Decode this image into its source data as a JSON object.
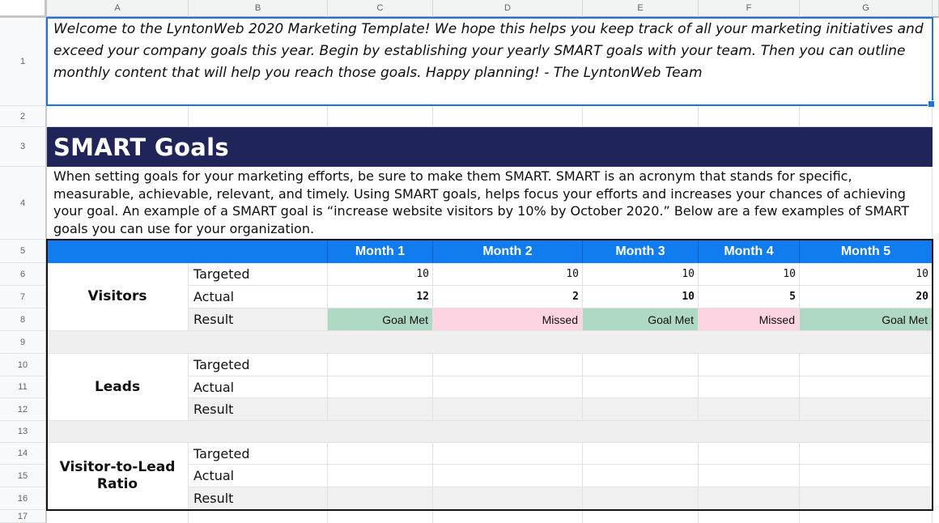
{
  "columns": [
    "A",
    "B",
    "C",
    "D",
    "E",
    "F",
    "G"
  ],
  "rows": [
    "1",
    "2",
    "3",
    "4",
    "5",
    "6",
    "7",
    "8",
    "9",
    "10",
    "11",
    "12",
    "13",
    "14",
    "15",
    "16",
    "17"
  ],
  "intro_cell": {
    "text": "Welcome to the LyntonWeb 2020 Marketing Template! We hope this helps you keep track of all your marketing initiatives and exceed your company goals this year. Begin by establishing your yearly SMART goals with your team. Then you can outline monthly content that will help you reach those goals. Happy planning! - The LyntonWeb Team"
  },
  "section": {
    "title": "SMART Goals",
    "description": "When setting goals for your marketing efforts, be sure to make them SMART. SMART is an acronym that stands for specific, measurable, achievable, relevant, and timely. Using SMART goals, helps focus your efforts and increases your chances of achieving your goal. An example of a SMART goal is “increase website visitors by 10% by October 2020.” Below are a few examples of SMART goals you can use for your organization."
  },
  "goals_table": {
    "months": [
      "Month 1",
      "Month 2",
      "Month 3",
      "Month 4",
      "Month 5"
    ],
    "metric_labels": [
      "Targeted",
      "Actual",
      "Result"
    ],
    "groups": [
      {
        "name": "Visitors",
        "targeted": [
          "10",
          "10",
          "10",
          "10",
          "10"
        ],
        "actual": [
          "12",
          "2",
          "10",
          "5",
          "20"
        ],
        "result": [
          "Goal Met",
          "Missed",
          "Goal Met",
          "Missed",
          "Goal Met"
        ],
        "result_status": [
          "met",
          "missed",
          "met",
          "missed",
          "met"
        ]
      },
      {
        "name": "Leads",
        "targeted": [
          "",
          "",
          "",
          "",
          ""
        ],
        "actual": [
          "",
          "",
          "",
          "",
          ""
        ],
        "result": [
          "",
          "",
          "",
          "",
          ""
        ],
        "result_status": [
          "empty",
          "empty",
          "empty",
          "empty",
          "empty"
        ]
      },
      {
        "name": "Visitor-to-Lead Ratio",
        "targeted": [
          "",
          "",
          "",
          "",
          ""
        ],
        "actual": [
          "",
          "",
          "",
          "",
          ""
        ],
        "result": [
          "",
          "",
          "",
          "",
          ""
        ],
        "result_status": [
          "empty",
          "empty",
          "empty",
          "empty",
          "empty"
        ]
      }
    ]
  },
  "colors": {
    "section_navy": "#1f2459",
    "month_header_blue": "#107cf0",
    "goal_met_green": "#b0d9c3",
    "missed_pink": "#fbd3e1",
    "selection_blue": "#1a73e8",
    "band_gray": "#efefef"
  }
}
